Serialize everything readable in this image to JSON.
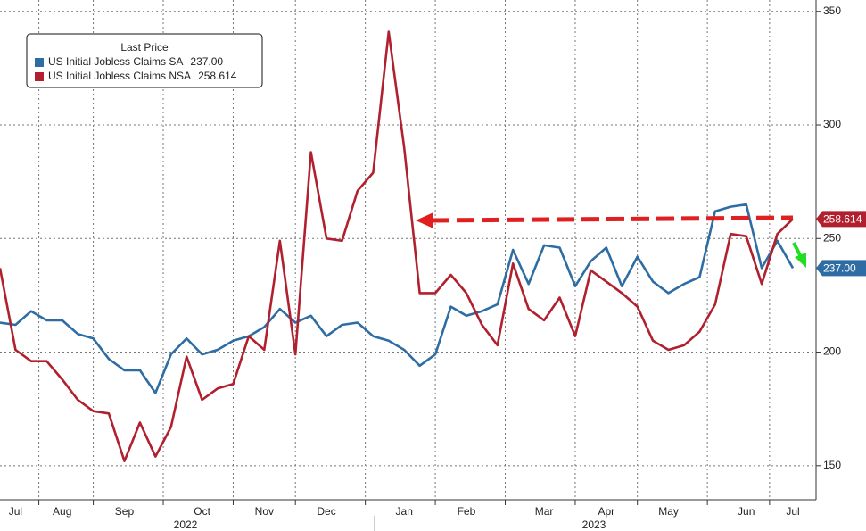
{
  "chart_data": {
    "type": "line",
    "legend_title": "Last Price",
    "categories": [
      null,
      "Jul",
      null,
      null,
      "Aug",
      null,
      null,
      null,
      "Sep",
      null,
      null,
      null,
      null,
      "Oct",
      null,
      null,
      null,
      "Nov",
      null,
      null,
      null,
      "Dec",
      null,
      null,
      null,
      null,
      "Jan",
      null,
      null,
      null,
      "Feb",
      null,
      null,
      null,
      null,
      "Mar",
      null,
      null,
      null,
      "Apr",
      null,
      null,
      null,
      "May",
      null,
      null,
      null,
      null,
      "Jun",
      null,
      null,
      "Jul"
    ],
    "years": [
      "2022",
      "2023"
    ],
    "series": [
      {
        "name": "US Initial Jobless Claims SA",
        "color": "#2e6da4",
        "values": [
          213,
          212,
          218,
          214,
          214,
          208,
          206,
          197,
          192,
          192,
          182,
          199,
          206,
          199,
          201,
          205,
          207,
          211,
          219,
          213,
          216,
          207,
          212,
          213,
          207,
          205,
          201,
          194,
          199,
          220,
          216,
          218,
          221,
          245,
          230,
          247,
          246,
          229,
          240,
          246,
          229,
          242,
          231,
          226,
          230,
          233,
          262,
          264,
          265,
          237,
          249,
          237
        ],
        "value_labels": [
          null,
          null,
          null,
          null,
          null,
          null,
          null,
          null,
          null,
          null,
          null,
          null,
          null,
          null,
          null,
          null,
          null,
          null,
          null,
          null,
          null,
          null,
          null,
          null,
          null,
          null,
          null,
          null,
          null,
          null,
          null,
          null,
          null,
          null,
          null,
          null,
          null,
          null,
          null,
          null,
          null,
          null,
          null,
          null,
          null,
          null,
          null,
          null,
          null,
          null,
          null,
          "237.00"
        ]
      },
      {
        "name": "US Initial Jobless Claims NSA",
        "color": "#b0202e",
        "values": [
          237,
          201,
          196,
          196,
          188,
          179,
          174,
          173,
          152,
          169,
          154,
          167,
          198,
          179,
          184,
          186,
          207,
          201,
          249,
          199,
          288,
          250,
          249,
          271,
          279,
          341,
          290,
          226,
          226,
          234,
          226,
          212,
          203,
          239,
          219,
          214,
          224,
          207,
          236,
          231,
          226,
          220,
          205,
          201,
          203,
          209,
          221,
          252,
          251,
          230,
          252,
          258.614
        ],
        "value_labels": [
          null,
          null,
          null,
          null,
          null,
          null,
          null,
          null,
          null,
          null,
          null,
          null,
          null,
          null,
          null,
          null,
          null,
          null,
          null,
          null,
          null,
          null,
          null,
          null,
          null,
          null,
          null,
          null,
          null,
          null,
          null,
          null,
          null,
          null,
          null,
          null,
          null,
          null,
          null,
          null,
          null,
          null,
          null,
          null,
          null,
          null,
          null,
          null,
          null,
          null,
          null,
          "258.614"
        ]
      }
    ],
    "ylim": [
      135,
      355
    ],
    "yticks": [
      150,
      200,
      250,
      300,
      350
    ],
    "grid": true,
    "legend": "upper left"
  }
}
